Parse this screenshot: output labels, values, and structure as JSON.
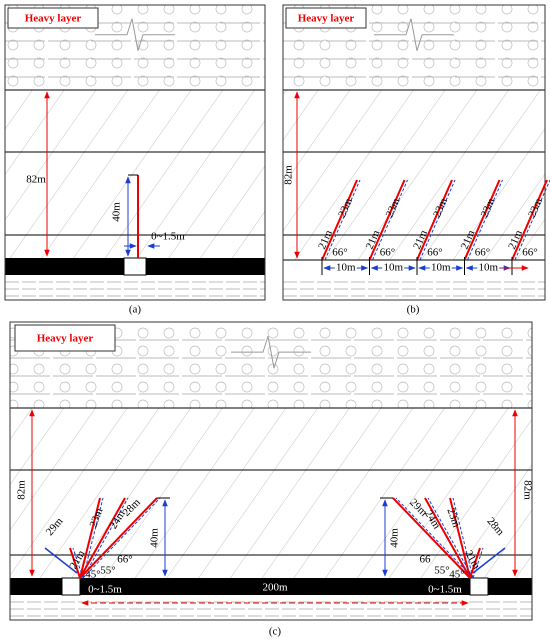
{
  "panels": [
    {
      "heavy_layer": "Heavy layer",
      "height": "82m",
      "borehole": "40m",
      "offset": "0~1.5m",
      "caption": "(a)"
    },
    {
      "heavy_layer": "Heavy layer",
      "height": "82m",
      "upper": [
        "23m",
        "23m",
        "23m",
        "23m",
        "23m"
      ],
      "lower": [
        "21m",
        "21m",
        "21m",
        "21m",
        "21m"
      ],
      "angles": [
        "66°",
        "66°",
        "66°",
        "66°",
        "66°"
      ],
      "spacings": [
        "10m",
        "10m",
        "10m",
        "10m"
      ],
      "caption": "(b)"
    },
    {
      "heavy_layer": "Heavy layer",
      "heights": [
        "82m",
        "82m"
      ],
      "left": {
        "lengths": [
          "29m",
          "23m",
          "24m",
          "28m",
          "21m"
        ],
        "angles": [
          "45°",
          "55°",
          "66°"
        ],
        "borehole": "40m",
        "offset": "0~1.5m"
      },
      "right": {
        "lengths": [
          "28m",
          "23m",
          "24m",
          "29m",
          "21m"
        ],
        "angles": [
          "66",
          "55°",
          "45°"
        ],
        "borehole": "40m",
        "offset": "0~1.5m"
      },
      "span": "200m",
      "caption": "(c)"
    }
  ]
}
